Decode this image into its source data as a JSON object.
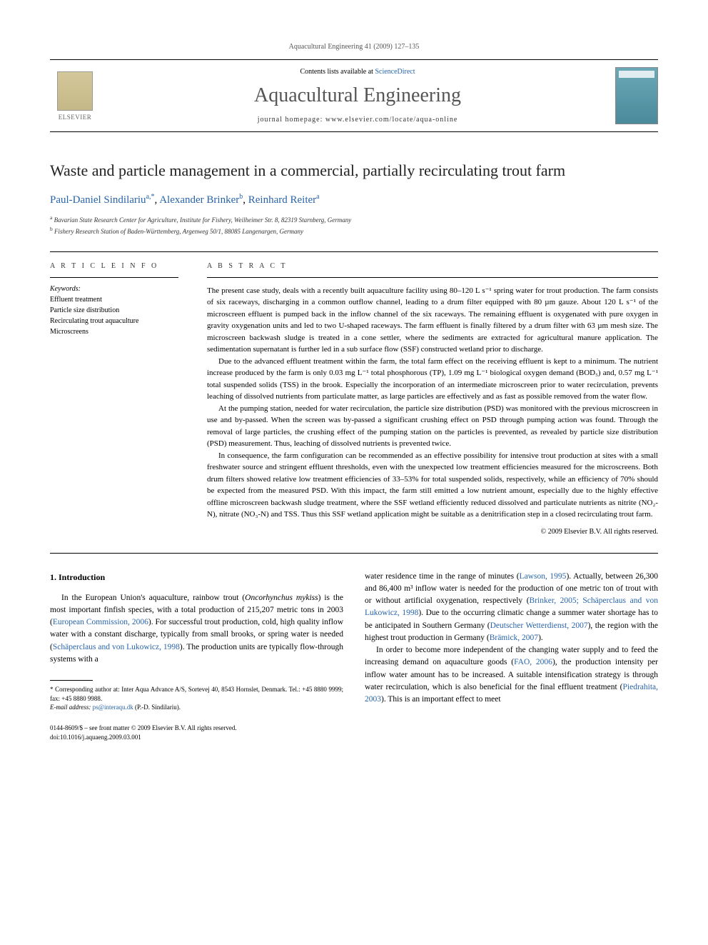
{
  "journal_ref": "Aquacultural Engineering 41 (2009) 127–135",
  "banner": {
    "contents_prefix": "Contents lists available at ",
    "contents_link": "ScienceDirect",
    "journal_title": "Aquacultural Engineering",
    "homepage_prefix": "journal homepage: ",
    "homepage_url": "www.elsevier.com/locate/aqua-online",
    "publisher": "ELSEVIER"
  },
  "title": "Waste and particle management in a commercial, partially recirculating trout farm",
  "authors": [
    {
      "name": "Paul-Daniel Sindilariu",
      "marks": "a,*"
    },
    {
      "name": "Alexander Brinker",
      "marks": "b"
    },
    {
      "name": "Reinhard Reiter",
      "marks": "a"
    }
  ],
  "affiliations": [
    {
      "mark": "a",
      "text": "Bavarian State Research Center for Agriculture, Institute for Fishery, Weilheimer Str. 8, 82319 Starnberg, Germany"
    },
    {
      "mark": "b",
      "text": "Fishery Research Station of Baden-Württemberg, Argenweg 50/1, 88085 Langenargen, Germany"
    }
  ],
  "article_info": {
    "heading": "A R T I C L E   I N F O",
    "keywords_label": "Keywords:",
    "keywords": [
      "Effluent treatment",
      "Particle size distribution",
      "Recirculating trout aquaculture",
      "Microscreens"
    ]
  },
  "abstract": {
    "heading": "A B S T R A C T",
    "paragraphs": [
      "The present case study, deals with a recently built aquaculture facility using 80–120 L s⁻¹ spring water for trout production. The farm consists of six raceways, discharging in a common outflow channel, leading to a drum filter equipped with 80 µm gauze. About 120 L s⁻¹ of the microscreen effluent is pumped back in the inflow channel of the six raceways. The remaining effluent is oxygenated with pure oxygen in gravity oxygenation units and led to two U-shaped raceways. The farm effluent is finally filtered by a drum filter with 63 µm mesh size. The microscreen backwash sludge is treated in a cone settler, where the sediments are extracted for agricultural manure application. The sedimentation supernatant is further led in a sub surface flow (SSF) constructed wetland prior to discharge.",
      "Due to the advanced effluent treatment within the farm, the total farm effect on the receiving effluent is kept to a minimum. The nutrient increase produced by the farm is only 0.03 mg L⁻¹ total phosphorous (TP), 1.09 mg L⁻¹ biological oxygen demand (BOD₅) and, 0.57 mg L⁻¹ total suspended solids (TSS) in the brook. Especially the incorporation of an intermediate microscreen prior to water recirculation, prevents leaching of dissolved nutrients from particulate matter, as large particles are effectively and as fast as possible removed from the water flow.",
      "At the pumping station, needed for water recirculation, the particle size distribution (PSD) was monitored with the previous microscreen in use and by-passed. When the screen was by-passed a significant crushing effect on PSD through pumping action was found. Through the removal of large particles, the crushing effect of the pumping station on the particles is prevented, as revealed by particle size distribution (PSD) measurement. Thus, leaching of dissolved nutrients is prevented twice.",
      "In consequence, the farm configuration can be recommended as an effective possibility for intensive trout production at sites with a small freshwater source and stringent effluent thresholds, even with the unexpected low treatment efficiencies measured for the microscreens. Both drum filters showed relative low treatment efficiencies of 33–53% for total suspended solids, respectively, while an efficiency of 70% should be expected from the measured PSD. With this impact, the farm still emitted a low nutrient amount, especially due to the highly effective offline microscreen backwash sludge treatment, where the SSF wetland efficiently reduced dissolved and particulate nutrients as nitrite (NO₂-N), nitrate (NO₃-N) and TSS. Thus this SSF wetland application might be suitable as a denitrification step in a closed recirculating trout farm."
    ],
    "copyright": "© 2009 Elsevier B.V. All rights reserved."
  },
  "body": {
    "section_heading": "1. Introduction",
    "col1_p1_a": "In the European Union's aquaculture, rainbow trout (",
    "col1_p1_b": "Oncorhynchus mykiss",
    "col1_p1_c": ") is the most important finfish species, with a total production of 215,207 metric tons in 2003 (",
    "col1_ref1": "European Commission, 2006",
    "col1_p1_d": "). For successful trout production, cold, high quality inflow water with a constant discharge, typically from small brooks, or spring water is needed (",
    "col1_ref2": "Schäperclaus and von Lukowicz, 1998",
    "col1_p1_e": "). The production units are typically flow-through systems with a",
    "col2_p1_a": "water residence time in the range of minutes (",
    "col2_ref1": "Lawson, 1995",
    "col2_p1_b": "). Actually, between 26,300 and 86,400 m³ inflow water is needed for the production of one metric ton of trout with or without artificial oxygenation, respectively (",
    "col2_ref2": "Brinker, 2005; Schäperclaus and von Lukowicz, 1998",
    "col2_p1_c": "). Due to the occurring climatic change a summer water shortage has to be anticipated in Southern Germany (",
    "col2_ref3": "Deutscher Wetterdienst, 2007",
    "col2_p1_d": "), the region with the highest trout production in Germany (",
    "col2_ref4": "Brämick, 2007",
    "col2_p1_e": ").",
    "col2_p2_a": "In order to become more independent of the changing water supply and to feed the increasing demand on aquaculture goods (",
    "col2_ref5": "FAO, 2006",
    "col2_p2_b": "), the production intensity per inflow water amount has to be increased. A suitable intensification strategy is through water recirculation, which is also beneficial for the final effluent treatment (",
    "col2_ref6": "Piedrahita, 2003",
    "col2_p2_c": "). This is an important effect to meet"
  },
  "footnote": {
    "corr_label": "* Corresponding author at: Inter Aqua Advance A/S, Sortevej 40, 8543 Hornslet, Denmark. Tel.: +45 8880 9999; fax: +45 8880 9988.",
    "email_label": "E-mail address: ",
    "email": "ps@interaqu.dk",
    "email_suffix": " (P.-D. Sindilariu)."
  },
  "doi": {
    "line1": "0144-8609/$ – see front matter © 2009 Elsevier B.V. All rights reserved.",
    "line2": "doi:10.1016/j.aquaeng.2009.03.001"
  },
  "colors": {
    "link": "#2864aa",
    "text": "#000000",
    "heading_gray": "#555555"
  }
}
